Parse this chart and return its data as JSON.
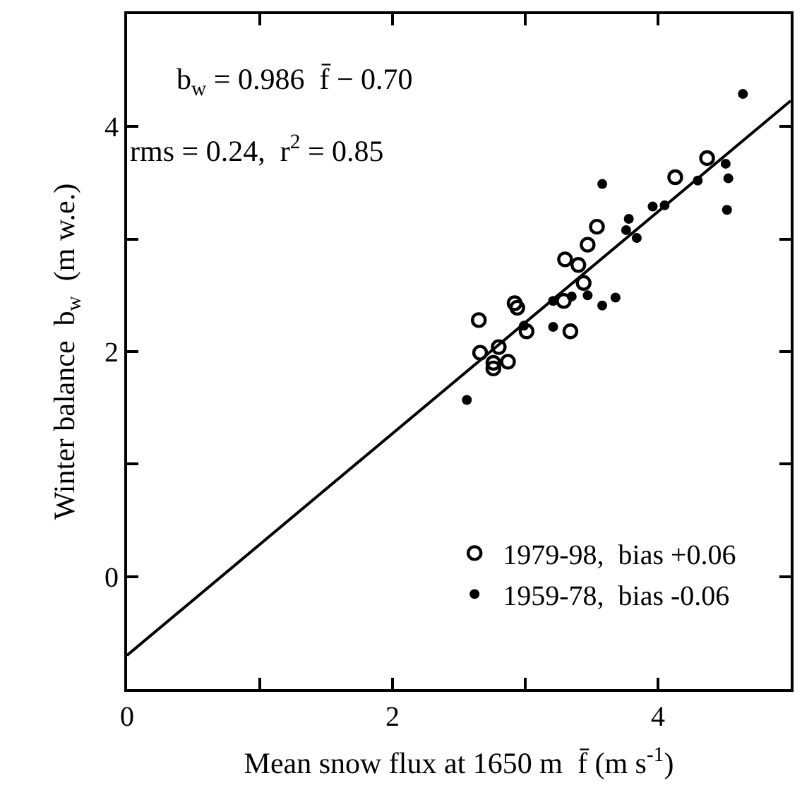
{
  "chart_data": {
    "type": "scatter",
    "xlabel": "Mean snow flux at 1650 m  f̄ (m s$^{-1}$)",
    "ylabel": "Winter balance  b$_{w}$  (m w.e.)",
    "annotations": [
      "b$_{w}$ = 0.986  f̄ − 0.70",
      "rms = 0.24,  r$^{2}$ = 0.85"
    ],
    "xlim": [
      0,
      5
    ],
    "ylim": [
      -1,
      5
    ],
    "xticks": [
      0,
      {
        "value": 1,
        "label": null
      },
      2,
      {
        "value": 3,
        "label": null
      },
      4
    ],
    "yticks": [
      0,
      {
        "value": 1,
        "label": null
      },
      2,
      {
        "value": 3,
        "label": null
      },
      4
    ],
    "legend": "bottom right",
    "series": [
      {
        "name": "1979-98,  bias +0.06",
        "color": "#000000",
        "marker": "circle-open",
        "x": [
          2.65,
          2.66,
          2.76,
          2.76,
          2.8,
          2.87,
          2.92,
          2.94,
          3.01,
          3.29,
          3.34,
          3.3,
          3.4,
          3.44,
          3.47,
          3.54,
          4.13,
          4.37
        ],
        "values": [
          2.28,
          1.99,
          1.85,
          1.9,
          2.04,
          1.91,
          2.43,
          2.39,
          2.18,
          2.45,
          2.18,
          2.82,
          2.77,
          2.61,
          2.95,
          3.11,
          3.55,
          3.72
        ]
      },
      {
        "name": "1959-78,  bias -0.06",
        "color": "#000000",
        "marker": "circle",
        "x": [
          2.56,
          2.99,
          3.21,
          3.21,
          3.35,
          3.47,
          3.58,
          3.68,
          3.58,
          3.78,
          3.76,
          3.84,
          3.96,
          4.05,
          4.3,
          4.51,
          4.53,
          4.52,
          4.64
        ],
        "values": [
          1.57,
          2.23,
          2.45,
          2.22,
          2.49,
          2.5,
          2.41,
          2.48,
          3.49,
          3.18,
          3.08,
          3.01,
          3.29,
          3.3,
          3.52,
          3.67,
          3.54,
          3.26,
          4.29
        ]
      },
      {
        "type": "line",
        "color": "#000000",
        "line_style": "solid",
        "x": [
          0,
          5
        ],
        "values": [
          -0.7,
          4.23
        ]
      }
    ]
  }
}
